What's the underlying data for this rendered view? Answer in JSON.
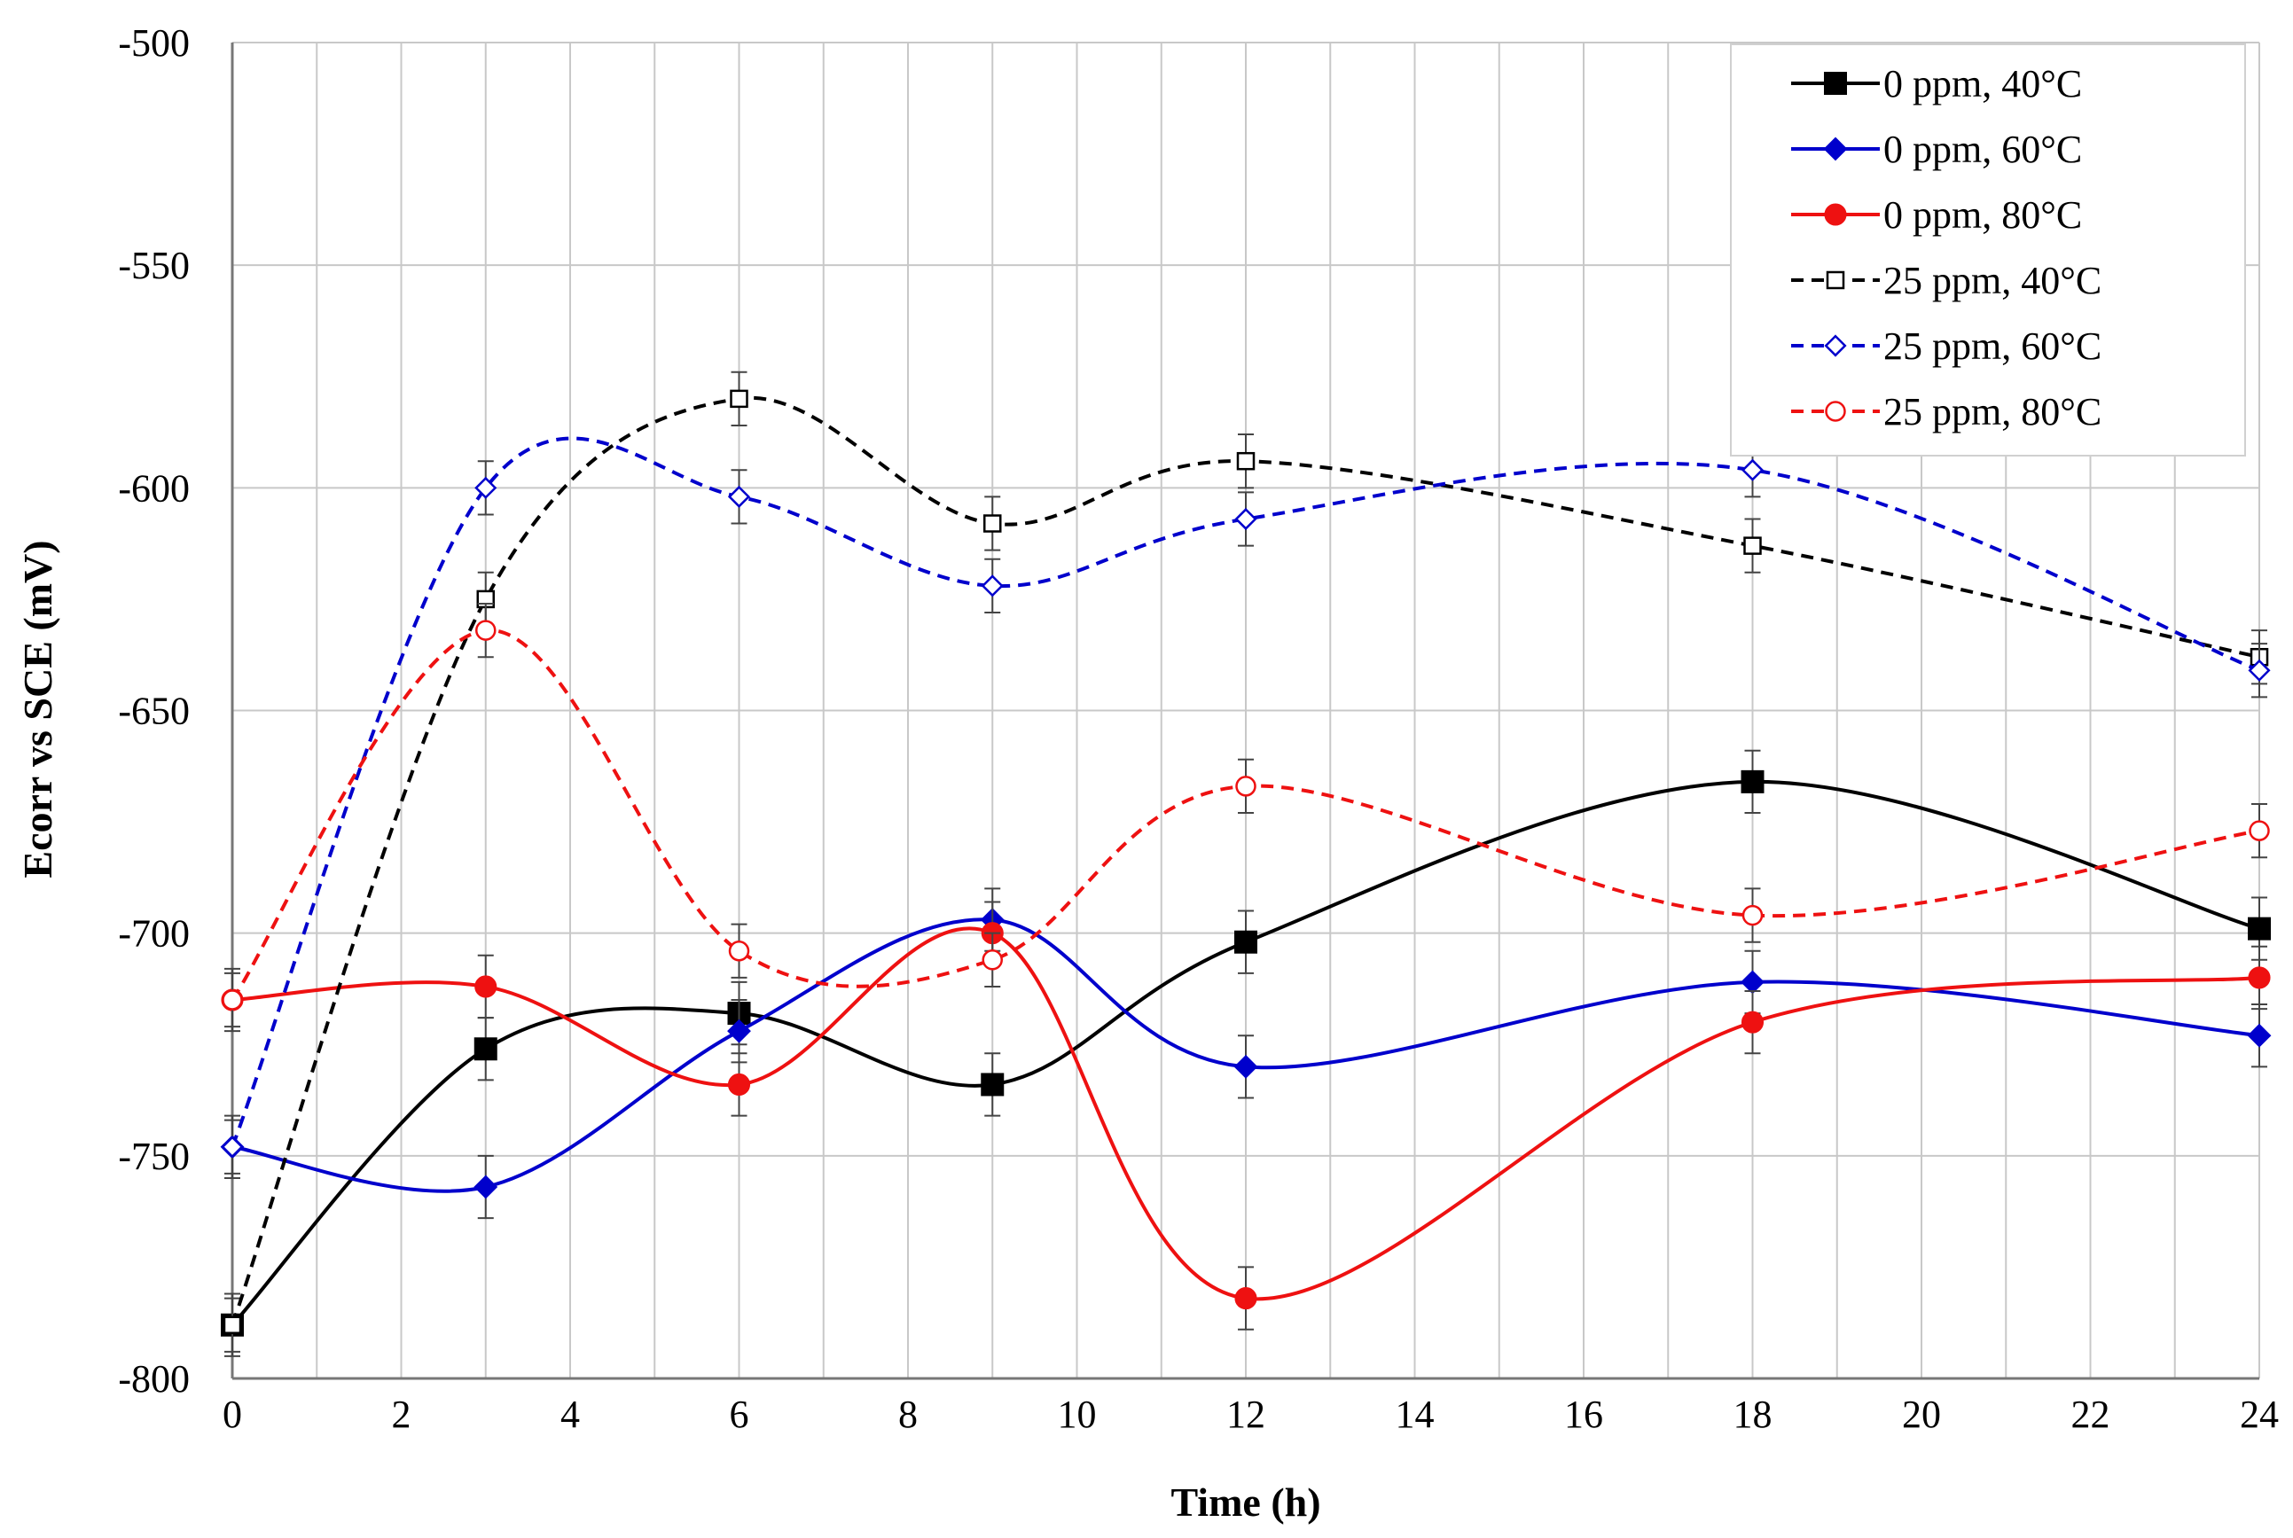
{
  "chart_data": {
    "type": "line",
    "title": "",
    "xlabel": "Time (h)",
    "ylabel": "Ecorr vs SCE (mV)",
    "xlim": [
      0,
      24
    ],
    "ylim": [
      -800,
      -500
    ],
    "xticks": [
      0,
      2,
      4,
      6,
      8,
      10,
      12,
      14,
      16,
      18,
      20,
      22,
      24
    ],
    "yticks": [
      -500,
      -550,
      -600,
      -650,
      -700,
      -750,
      -800
    ],
    "x_minor_step": 1,
    "grid": true,
    "legend_position": "top-right",
    "series": [
      {
        "name": "0 ppm, 40°C",
        "color": "#000000",
        "dashed": false,
        "marker": "square",
        "filled": true,
        "x": [
          0,
          3,
          6,
          9,
          12,
          18,
          24
        ],
        "y": [
          -788,
          -726,
          -718,
          -734,
          -702,
          -666,
          -699
        ],
        "err": 7
      },
      {
        "name": "0 ppm, 60°C",
        "color": "#0000cc",
        "dashed": false,
        "marker": "diamond",
        "filled": true,
        "x": [
          0,
          3,
          6,
          9,
          12,
          18,
          24
        ],
        "y": [
          -748,
          -757,
          -722,
          -697,
          -730,
          -711,
          -723
        ],
        "err": 7
      },
      {
        "name": "0 ppm, 80°C",
        "color": "#ee1111",
        "dashed": false,
        "marker": "circle",
        "filled": true,
        "x": [
          0,
          3,
          6,
          9,
          12,
          18,
          24
        ],
        "y": [
          -715,
          -712,
          -734,
          -700,
          -782,
          -720,
          -710
        ],
        "err": 7
      },
      {
        "name": "25 ppm, 40°C",
        "color": "#000000",
        "dashed": true,
        "marker": "square",
        "filled": false,
        "x": [
          0,
          3,
          6,
          9,
          12,
          18,
          24
        ],
        "y": [
          -788,
          -625,
          -580,
          -608,
          -594,
          -613,
          -638
        ],
        "err": 6
      },
      {
        "name": "25 ppm, 60°C",
        "color": "#0000cc",
        "dashed": true,
        "marker": "diamond",
        "filled": false,
        "x": [
          0,
          3,
          6,
          9,
          12,
          18,
          24
        ],
        "y": [
          -748,
          -600,
          -602,
          -622,
          -607,
          -596,
          -641
        ],
        "err": 6
      },
      {
        "name": "25 ppm, 80°C",
        "color": "#ee1111",
        "dashed": true,
        "marker": "circle",
        "filled": false,
        "x": [
          0,
          3,
          6,
          9,
          12,
          18,
          24
        ],
        "y": [
          -715,
          -632,
          -704,
          -706,
          -667,
          -696,
          -677
        ],
        "err": 6
      }
    ]
  }
}
